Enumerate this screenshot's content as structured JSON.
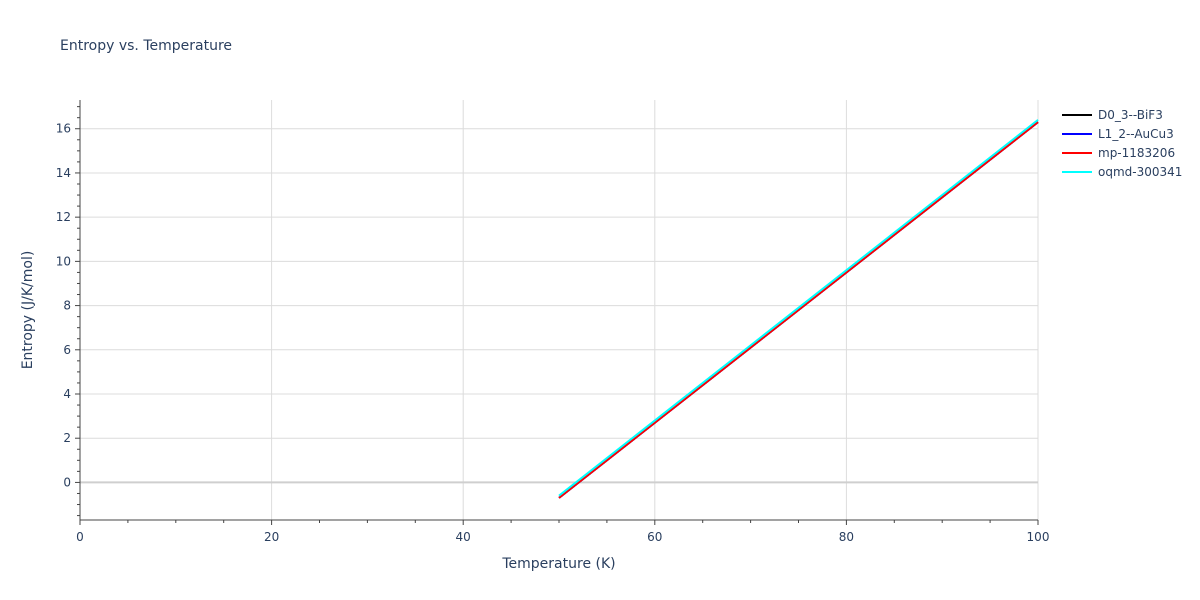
{
  "chart_data": {
    "type": "line",
    "title": "Entropy vs. Temperature",
    "xlabel": "Temperature (K)",
    "ylabel": "Entropy (J/K/mol)",
    "xlim": [
      0,
      100
    ],
    "ylim": [
      -1.7,
      17.3
    ],
    "xticks": [
      0,
      20,
      40,
      60,
      80,
      100
    ],
    "yticks": [
      0,
      2,
      4,
      6,
      8,
      10,
      12,
      14,
      16
    ],
    "grid": true,
    "legend_position": "right",
    "series": [
      {
        "name": "D0_3--BiF3",
        "color": "#000000",
        "x": [
          50,
          100
        ],
        "y": [
          -0.7,
          16.3
        ]
      },
      {
        "name": "L1_2--AuCu3",
        "color": "#0000ff",
        "x": [
          50,
          100
        ],
        "y": [
          -0.7,
          16.3
        ]
      },
      {
        "name": "mp-1183206",
        "color": "#ff0000",
        "x": [
          50,
          100
        ],
        "y": [
          -0.7,
          16.3
        ]
      },
      {
        "name": "oqmd-300341",
        "color": "#00ffff",
        "x": [
          50,
          100
        ],
        "y": [
          -0.6,
          16.4
        ]
      }
    ]
  }
}
